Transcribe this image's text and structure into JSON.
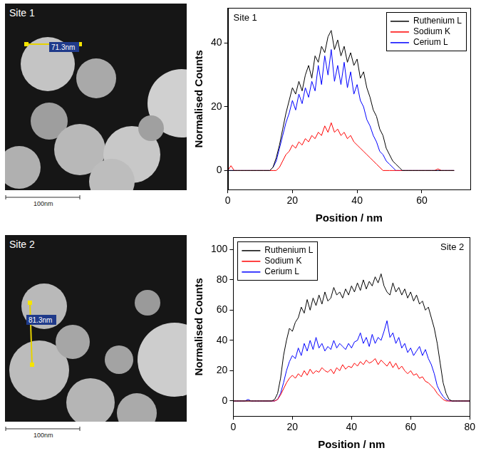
{
  "chart_data": [
    {
      "type": "line",
      "title": "Site 1",
      "x_label": "Position / nm",
      "y_label": "Normalised Counts",
      "x": [
        0,
        1,
        2,
        3,
        4,
        5,
        6,
        7,
        8,
        9,
        10,
        11,
        12,
        13,
        14,
        15,
        16,
        17,
        18,
        19,
        20,
        21,
        22,
        23,
        24,
        25,
        26,
        27,
        28,
        29,
        30,
        31,
        32,
        33,
        34,
        35,
        36,
        37,
        38,
        39,
        40,
        41,
        42,
        43,
        44,
        45,
        46,
        47,
        48,
        49,
        50,
        51,
        52,
        53,
        54,
        55,
        56,
        57,
        58,
        59,
        60,
        61,
        62,
        63,
        64,
        65,
        66,
        67,
        68,
        69,
        70
      ],
      "series": [
        {
          "name": "Ruthenium L",
          "color": "#000000",
          "values": [
            0,
            0,
            0,
            0,
            0,
            0,
            0,
            0,
            0,
            0,
            0,
            0,
            0,
            0,
            1,
            4,
            8,
            13,
            18,
            22,
            26,
            24,
            28,
            25,
            30,
            33,
            29,
            36,
            34,
            39,
            37,
            42,
            44,
            38,
            41,
            36,
            39,
            34,
            37,
            33,
            35,
            29,
            31,
            26,
            23,
            19,
            17,
            13,
            11,
            7,
            5,
            3,
            2,
            1,
            0,
            0,
            0,
            0,
            0,
            0,
            0,
            0,
            0,
            0,
            0,
            0,
            0,
            0,
            0,
            0,
            0
          ]
        },
        {
          "name": "Sodium K",
          "color": "#ff0000",
          "values": [
            0,
            1.5,
            0,
            0,
            0,
            0,
            0,
            0,
            0,
            0,
            0,
            0,
            0,
            0,
            0,
            0,
            1,
            3,
            5,
            6,
            8,
            7,
            9,
            8,
            10,
            9,
            11,
            10,
            12,
            11,
            14,
            12,
            15,
            12,
            13,
            11,
            12,
            10,
            11,
            9,
            8,
            7,
            6,
            5,
            4,
            3,
            2,
            1,
            0,
            0,
            0,
            0,
            0,
            0,
            0,
            0,
            0,
            0,
            0,
            0,
            0,
            0,
            0,
            0,
            0,
            0.5,
            0,
            0,
            0,
            0,
            0
          ]
        },
        {
          "name": "Cerium L",
          "color": "#0000ff",
          "values": [
            0,
            0,
            0,
            0,
            0,
            0,
            0,
            0,
            0,
            0,
            0,
            0,
            0,
            0,
            1,
            3,
            7,
            11,
            15,
            18,
            22,
            19,
            24,
            21,
            26,
            23,
            28,
            25,
            33,
            27,
            36,
            30,
            38,
            28,
            33,
            27,
            34,
            26,
            31,
            24,
            27,
            22,
            20,
            16,
            14,
            11,
            9,
            6,
            5,
            3,
            2,
            1,
            0,
            0,
            0,
            0,
            0,
            0,
            0,
            0,
            0,
            0,
            0,
            0,
            0,
            0,
            0,
            0,
            0,
            0,
            0
          ]
        }
      ],
      "xlim": [
        0,
        75
      ],
      "xticks": [
        0,
        20,
        40,
        60
      ],
      "ylim": [
        -6,
        51
      ],
      "yticks": [
        0,
        20,
        40
      ],
      "legend": "upper right",
      "grid": false
    },
    {
      "type": "line",
      "title": "Site 2",
      "x_label": "Position / nm",
      "y_label": "Normalised Counts",
      "x": [
        0,
        1,
        2,
        3,
        4,
        5,
        6,
        7,
        8,
        9,
        10,
        11,
        12,
        13,
        14,
        15,
        16,
        17,
        18,
        19,
        20,
        21,
        22,
        23,
        24,
        25,
        26,
        27,
        28,
        29,
        30,
        31,
        32,
        33,
        34,
        35,
        36,
        37,
        38,
        39,
        40,
        41,
        42,
        43,
        44,
        45,
        46,
        47,
        48,
        49,
        50,
        51,
        52,
        53,
        54,
        55,
        56,
        57,
        58,
        59,
        60,
        61,
        62,
        63,
        64,
        65,
        66,
        67,
        68,
        69,
        70,
        71,
        72,
        73,
        74,
        75,
        76,
        77,
        78,
        79,
        80
      ],
      "series": [
        {
          "name": "Ruthenium L",
          "color": "#000000",
          "values": [
            0,
            0,
            0,
            0,
            0,
            0,
            0,
            0,
            0,
            0,
            0,
            0,
            0,
            0,
            1,
            5,
            15,
            30,
            40,
            48,
            46,
            52,
            55,
            62,
            58,
            67,
            60,
            68,
            63,
            70,
            64,
            72,
            66,
            68,
            75,
            70,
            72,
            68,
            74,
            70,
            76,
            72,
            78,
            73,
            80,
            74,
            79,
            76,
            82,
            78,
            84,
            76,
            72,
            70,
            78,
            72,
            75,
            70,
            74,
            68,
            72,
            66,
            70,
            64,
            66,
            60,
            62,
            55,
            48,
            38,
            25,
            12,
            5,
            1,
            0,
            0,
            0,
            0,
            0,
            0,
            0
          ]
        },
        {
          "name": "Sodium K",
          "color": "#ff0000",
          "values": [
            0,
            0,
            0,
            0,
            0,
            0,
            0,
            0,
            0,
            0,
            0,
            0,
            0,
            0,
            0,
            1,
            4,
            8,
            12,
            15,
            17,
            15,
            18,
            16,
            20,
            17,
            21,
            18,
            20,
            19,
            22,
            20,
            19,
            21,
            18,
            22,
            20,
            24,
            21,
            23,
            22,
            25,
            23,
            26,
            24,
            27,
            25,
            26,
            28,
            24,
            27,
            25,
            23,
            26,
            22,
            25,
            21,
            23,
            20,
            18,
            20,
            17,
            18,
            15,
            16,
            13,
            12,
            10,
            8,
            5,
            3,
            1,
            0,
            0,
            0,
            0,
            0,
            0,
            0,
            0,
            0
          ]
        },
        {
          "name": "Cerium L",
          "color": "#0000ff",
          "values": [
            0,
            0,
            0,
            0,
            0,
            1,
            0,
            0,
            0,
            0,
            0,
            0,
            0,
            0,
            0,
            1,
            5,
            12,
            20,
            26,
            30,
            28,
            35,
            30,
            38,
            33,
            40,
            34,
            42,
            35,
            38,
            33,
            36,
            34,
            40,
            35,
            38,
            36,
            34,
            38,
            35,
            39,
            40,
            45,
            38,
            42,
            36,
            44,
            38,
            42,
            40,
            46,
            53,
            42,
            45,
            38,
            42,
            35,
            38,
            32,
            35,
            30,
            33,
            36,
            30,
            34,
            28,
            24,
            18,
            10,
            6,
            3,
            1,
            0,
            0,
            0,
            0,
            0,
            0,
            0,
            0
          ]
        }
      ],
      "xlim": [
        0,
        80
      ],
      "xticks": [
        0,
        20,
        40,
        60,
        80
      ],
      "ylim": [
        -10,
        108
      ],
      "yticks": [
        0,
        20,
        40,
        60,
        80,
        100
      ],
      "legend": "upper left",
      "grid": false
    }
  ],
  "images": [
    {
      "title": "Site 1",
      "line_label": "71.3nm",
      "scale_bar": "100nm"
    },
    {
      "title": "Site 2",
      "line_label": "81.3nm",
      "scale_bar": "100nm"
    }
  ]
}
